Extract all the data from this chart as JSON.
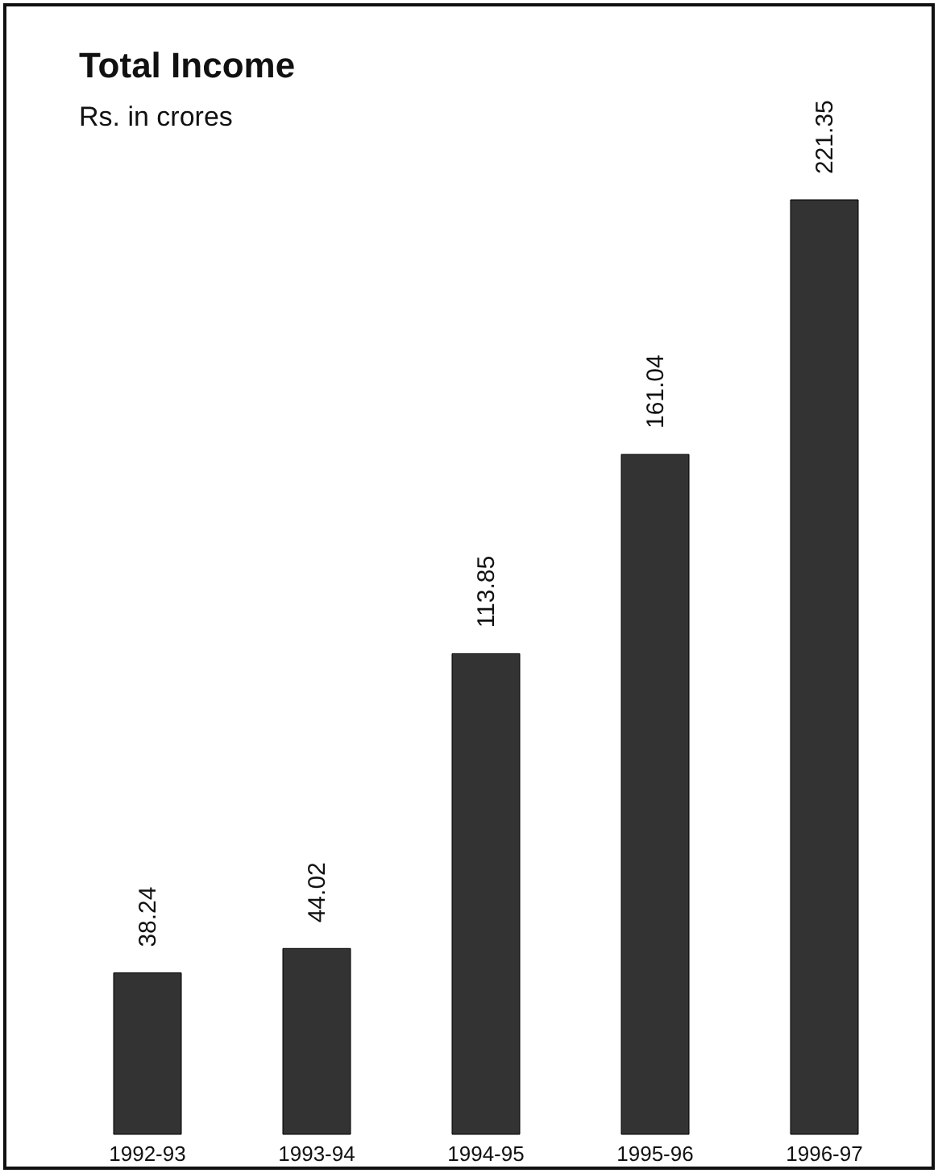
{
  "chart_data": {
    "type": "bar",
    "title": "Total Income",
    "subtitle": "Rs. in crores",
    "categories": [
      "1992-93",
      "1993-94",
      "1994-95",
      "1995-96",
      "1996-97"
    ],
    "values": [
      38.24,
      44.02,
      113.85,
      161.04,
      221.35
    ],
    "color": "#333333",
    "data_labels": true
  }
}
